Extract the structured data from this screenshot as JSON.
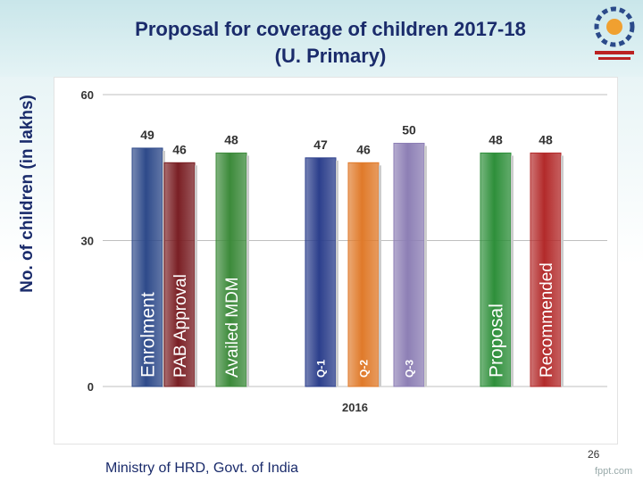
{
  "slide": {
    "title": "Proposal for coverage of children   2017-18",
    "subtitle": "(U. Primary)",
    "footer": "Ministry of HRD, Govt. of India",
    "page_number": "26",
    "watermark": "fppt.com"
  },
  "chart_data": {
    "type": "bar",
    "title": "Proposal for coverage of children   2017-18 (U. Primary)",
    "ylabel": "No. of children (in lakhs)",
    "xlabel": "2016",
    "ylim": [
      0,
      60
    ],
    "yticks": [
      "0",
      "30",
      "60"
    ],
    "grid": true,
    "legend": "none",
    "bars": [
      {
        "label": "Enrolment",
        "value": 49,
        "color": "#2e4a8a"
      },
      {
        "label": "PAB Approval",
        "value": 46,
        "color": "#7a1f24"
      },
      {
        "label": "Availed MDM",
        "value": 48,
        "color": "#3c8a3a"
      },
      {
        "label": "Q-1",
        "value": 47,
        "color": "#2c3f8c"
      },
      {
        "label": "Q-2",
        "value": 46,
        "color": "#e07a2a"
      },
      {
        "label": "Q-3",
        "value": 50,
        "color": "#8d7fb5"
      },
      {
        "label": "Proposal",
        "value": 48,
        "color": "#2e8f3a"
      },
      {
        "label": "Recommended",
        "value": 48,
        "color": "#b32a2a"
      }
    ]
  }
}
